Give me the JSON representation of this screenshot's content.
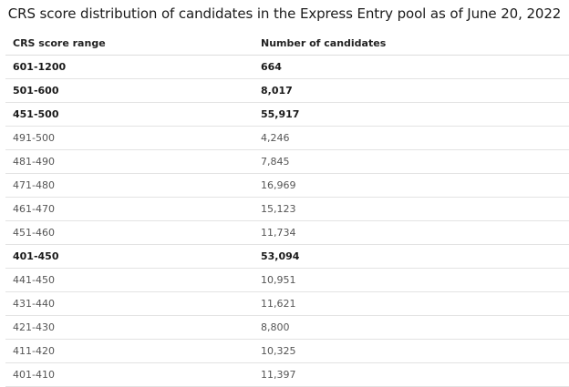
{
  "title": "CRS score distribution of candidates in the Express Entry pool as of June 20, 2022",
  "headers": {
    "range": "CRS score range",
    "count": "Number of candidates"
  },
  "rows": [
    {
      "range": "601-1200",
      "count": "664",
      "bold": true
    },
    {
      "range": "501-600",
      "count": "8,017",
      "bold": true
    },
    {
      "range": "451-500",
      "count": "55,917",
      "bold": true
    },
    {
      "range": "491-500",
      "count": "4,246",
      "bold": false
    },
    {
      "range": "481-490",
      "count": "7,845",
      "bold": false
    },
    {
      "range": "471-480",
      "count": "16,969",
      "bold": false
    },
    {
      "range": "461-470",
      "count": "15,123",
      "bold": false
    },
    {
      "range": "451-460",
      "count": "11,734",
      "bold": false
    },
    {
      "range": "401-450",
      "count": "53,094",
      "bold": true
    },
    {
      "range": "441-450",
      "count": "10,951",
      "bold": false
    },
    {
      "range": "431-440",
      "count": "11,621",
      "bold": false
    },
    {
      "range": "421-430",
      "count": "8,800",
      "bold": false
    },
    {
      "range": "411-420",
      "count": "10,325",
      "bold": false
    },
    {
      "range": "401-410",
      "count": "11,397",
      "bold": false
    }
  ]
}
